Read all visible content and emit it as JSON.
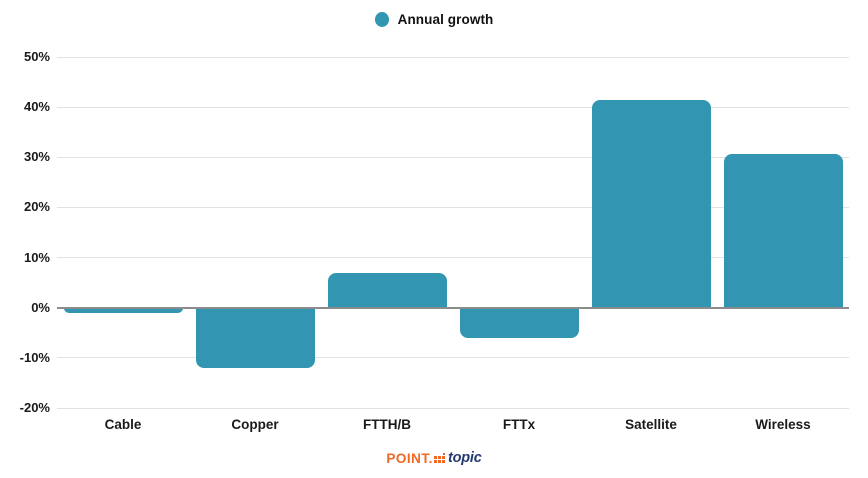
{
  "legend": {
    "label": "Annual growth"
  },
  "colors": {
    "bar": "#3295b1",
    "gridline": "#e2e2e2",
    "zero_axis": "#8c8c8c",
    "text": "#1a1a1a",
    "logo_orange": "#f26822",
    "logo_navy": "#233a70"
  },
  "footer": {
    "logo_point": "POINT.",
    "logo_topic": "topic"
  },
  "chart_data": {
    "type": "bar",
    "title": "",
    "xlabel": "",
    "ylabel": "",
    "categories": [
      "Cable",
      "Copper",
      "FTTH/B",
      "FTTx",
      "Satellite",
      "Wireless"
    ],
    "series": [
      {
        "name": "Annual growth",
        "values": [
          -1,
          -12,
          7,
          -6,
          41.5,
          30.7
        ]
      }
    ],
    "ylim": [
      -20,
      50
    ],
    "ytick_step": 10,
    "ytick_labels": [
      "50%",
      "40%",
      "30%",
      "20%",
      "10%",
      "0%",
      "-10%",
      "-20%"
    ],
    "grid": true,
    "legend_position": "top-center"
  }
}
